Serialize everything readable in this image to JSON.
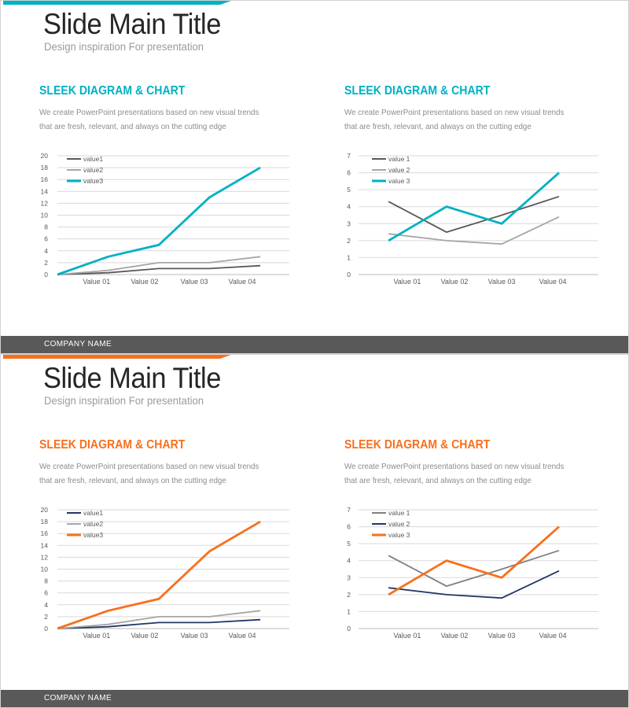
{
  "page": {
    "background": "#ffffff"
  },
  "slides": [
    {
      "accent_color": "#00b1c3",
      "title": "Slide Main Title",
      "subtitle": "Design inspiration For presentation",
      "company_name": "COMPANY NAME",
      "footer_bar_color": "#595959",
      "sections": [
        {
          "heading": "SLEEK DIAGRAM & CHART",
          "desc_line1": "We create PowerPoint presentations based on new visual trends",
          "desc_line2": "that are fresh, relevant, and always on the cutting edge",
          "chart_ref": 0
        },
        {
          "heading": "SLEEK DIAGRAM & CHART",
          "desc_line1": "We create PowerPoint presentations based on new visual trends",
          "desc_line2": "that are fresh, relevant, and always on the cutting edge",
          "chart_ref": 1
        }
      ]
    },
    {
      "accent_color": "#f7701d",
      "title": "Slide Main Title",
      "subtitle": "Design inspiration For presentation",
      "company_name": "COMPANY NAME",
      "footer_bar_color": "#595959",
      "sections": [
        {
          "heading": "SLEEK DIAGRAM & CHART",
          "desc_line1": "We create PowerPoint presentations based on new visual trends",
          "desc_line2": "that are fresh, relevant, and always on the cutting edge",
          "chart_ref": 2
        },
        {
          "heading": "SLEEK DIAGRAM & CHART",
          "desc_line1": "We create PowerPoint presentations based on new visual trends",
          "desc_line2": "that are fresh, relevant, and always on the cutting edge",
          "chart_ref": 3
        }
      ]
    }
  ],
  "chart_data": [
    {
      "type": "line",
      "slide": 1,
      "position": "left",
      "categories": [
        "Value 01",
        "Value 02",
        "Value 03",
        "Value 04"
      ],
      "starts_at_origin": true,
      "ylim": [
        0,
        20
      ],
      "ytick_step": 2,
      "grid": true,
      "legend_position": "top-left",
      "series": [
        {
          "name": "value1",
          "color": "#595959",
          "values": [
            0,
            0.3,
            1,
            1,
            1.5
          ]
        },
        {
          "name": "value2",
          "color": "#a6a6a6",
          "values": [
            0,
            0.7,
            2,
            2,
            3
          ]
        },
        {
          "name": "value3",
          "color": "#00b1c3",
          "values": [
            0,
            3,
            5,
            13,
            18
          ]
        }
      ]
    },
    {
      "type": "line",
      "slide": 1,
      "position": "right",
      "categories": [
        "Value 01",
        "Value 02",
        "Value 03",
        "Value 04"
      ],
      "starts_at_origin": false,
      "ylim": [
        0,
        7
      ],
      "ytick_step": 1,
      "grid": true,
      "legend_position": "top-left",
      "series": [
        {
          "name": "value 1",
          "color": "#595959",
          "values": [
            4.3,
            2.5,
            3.5,
            4.6
          ]
        },
        {
          "name": "value 2",
          "color": "#a6a6a6",
          "values": [
            2.4,
            2,
            1.8,
            3.4
          ]
        },
        {
          "name": "value 3",
          "color": "#00b1c3",
          "values": [
            2,
            4,
            3,
            6
          ]
        }
      ]
    },
    {
      "type": "line",
      "slide": 2,
      "position": "left",
      "categories": [
        "Value 01",
        "Value 02",
        "Value 03",
        "Value 04"
      ],
      "starts_at_origin": true,
      "ylim": [
        0,
        20
      ],
      "ytick_step": 2,
      "grid": true,
      "legend_position": "top-left",
      "series": [
        {
          "name": "value1",
          "color": "#203864",
          "values": [
            0,
            0.3,
            1,
            1,
            1.5
          ]
        },
        {
          "name": "value2",
          "color": "#a6a6a6",
          "values": [
            0,
            0.7,
            2,
            2,
            3
          ]
        },
        {
          "name": "value3",
          "color": "#f7701d",
          "values": [
            0,
            3,
            5,
            13,
            18
          ]
        }
      ]
    },
    {
      "type": "line",
      "slide": 2,
      "position": "right",
      "categories": [
        "Value 01",
        "Value 02",
        "Value 03",
        "Value 04"
      ],
      "starts_at_origin": false,
      "ylim": [
        0,
        7
      ],
      "ytick_step": 1,
      "grid": true,
      "legend_position": "top-left",
      "series": [
        {
          "name": "value 1",
          "color": "#808080",
          "values": [
            4.3,
            2.5,
            3.5,
            4.6
          ]
        },
        {
          "name": "value 2",
          "color": "#203864",
          "values": [
            2.4,
            2,
            1.8,
            3.4
          ]
        },
        {
          "name": "value 3",
          "color": "#f7701d",
          "values": [
            2,
            4,
            3,
            6
          ]
        }
      ]
    }
  ]
}
